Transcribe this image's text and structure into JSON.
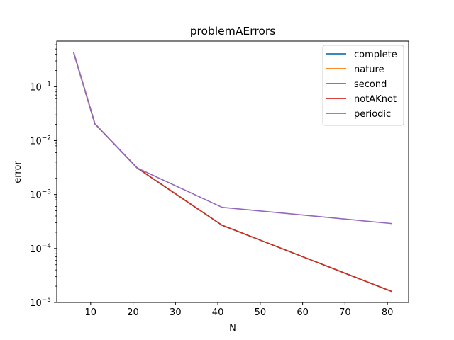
{
  "chart_data": {
    "type": "line",
    "title": "problemAErrors",
    "xlabel": "N",
    "ylabel": "error",
    "yscale": "log",
    "xlim": [
      2,
      85
    ],
    "ylim": [
      1e-05,
      0.7
    ],
    "xticks": [
      10,
      20,
      30,
      40,
      50,
      60,
      70,
      80
    ],
    "yticks": [
      {
        "value": 1e-05,
        "base": "10",
        "exp": "−5"
      },
      {
        "value": 0.0001,
        "base": "10",
        "exp": "−4"
      },
      {
        "value": 0.001,
        "base": "10",
        "exp": "−3"
      },
      {
        "value": 0.01,
        "base": "10",
        "exp": "−2"
      },
      {
        "value": 0.1,
        "base": "10",
        "exp": "−1"
      }
    ],
    "legend_position": "top-right",
    "grid": false,
    "x": [
      6,
      11,
      21,
      41,
      81
    ],
    "series": [
      {
        "name": "complete",
        "color": "#1f77b4",
        "values": [
          0.43,
          0.0205,
          0.0031,
          0.00027,
          1.6e-05
        ]
      },
      {
        "name": "nature",
        "color": "#ff7f0e",
        "values": [
          0.43,
          0.0205,
          0.0031,
          0.00027,
          1.6e-05
        ]
      },
      {
        "name": "second",
        "color": "#2ca02c",
        "values": [
          0.43,
          0.0205,
          0.0031,
          0.00027,
          1.6e-05
        ]
      },
      {
        "name": "notAKnot",
        "color": "#d62728",
        "values": [
          0.43,
          0.0205,
          0.0031,
          0.00027,
          1.6e-05
        ]
      },
      {
        "name": "periodic",
        "color": "#9467bd",
        "values": [
          0.43,
          0.0205,
          0.0031,
          0.00058,
          0.00029
        ]
      }
    ]
  }
}
